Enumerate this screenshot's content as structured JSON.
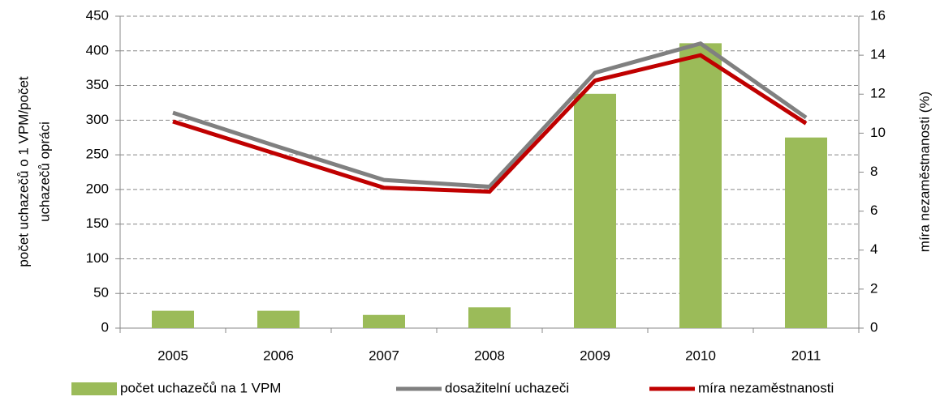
{
  "chart_data": {
    "type": "bar",
    "categories": [
      "2005",
      "2006",
      "2007",
      "2008",
      "2009",
      "2010",
      "2011"
    ],
    "series": [
      {
        "name": "počet uchazečů na 1 VPM",
        "type": "bar",
        "color": "#9bbb59",
        "values": [
          25,
          25,
          19,
          30,
          338,
          411,
          275
        ]
      },
      {
        "name": "dosažitelní uchazeči",
        "type": "line",
        "color": "#808080",
        "axis": "y2",
        "values": [
          11.05,
          9.3,
          7.6,
          7.25,
          13.1,
          14.6,
          10.8
        ]
      },
      {
        "name": "míra nezaměstnanosti",
        "type": "line",
        "color": "#c00000",
        "axis": "y2",
        "values": [
          10.6,
          8.9,
          7.2,
          7.0,
          12.7,
          14.0,
          10.5
        ]
      }
    ],
    "ylabel": [
      "počet uchazečů o 1 VPM/počet",
      "uchazečů opráci"
    ],
    "y2label": "míra nezaměstnanosti (%)",
    "ylim": [
      0,
      450
    ],
    "yticks": [
      0,
      50,
      100,
      150,
      200,
      250,
      300,
      350,
      400,
      450
    ],
    "y2lim": [
      0,
      16
    ],
    "y2ticks": [
      0,
      2,
      4,
      6,
      8,
      10,
      12,
      14,
      16
    ],
    "grid": true,
    "legend": "bottom"
  }
}
